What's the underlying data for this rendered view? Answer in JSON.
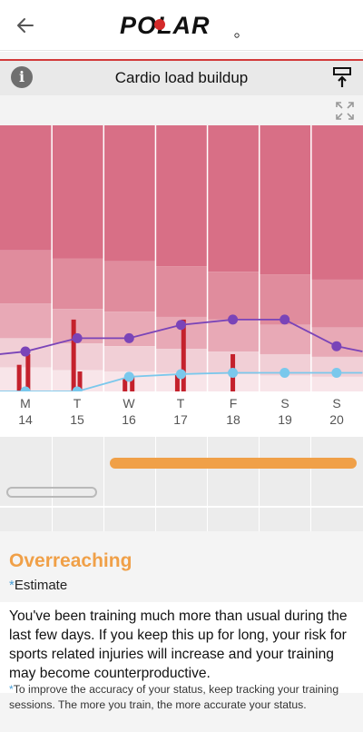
{
  "header": {
    "back_icon": "arrow-left-icon",
    "brand": "POLAR"
  },
  "card": {
    "title": "Cardio load buildup",
    "info_icon": "info-icon",
    "pin_icon": "pin-to-top-icon",
    "expand_icon": "expand-icon"
  },
  "colors": {
    "zone_very_high": "#d86f86",
    "zone_high": "#e08c9d",
    "zone_mid": "#e8a9b6",
    "zone_low": "#f1cfd6",
    "zone_lowest": "#f8e5e9",
    "strain_line": "#7a44b8",
    "tolerance_line": "#7ac8ec",
    "session_bar": "#c4212c",
    "status_accent": "#f0a048"
  },
  "days": [
    {
      "letter": "M",
      "date": "14"
    },
    {
      "letter": "T",
      "date": "15"
    },
    {
      "letter": "W",
      "date": "16"
    },
    {
      "letter": "T",
      "date": "17"
    },
    {
      "letter": "F",
      "date": "18"
    },
    {
      "letter": "S",
      "date": "19"
    },
    {
      "letter": "S",
      "date": "20"
    }
  ],
  "chart_data": {
    "type": "line",
    "title": "",
    "categories": [
      "M 14",
      "T 15",
      "W 16",
      "T 17",
      "F 18",
      "S 19",
      "S 20"
    ],
    "ylim": [
      0,
      100
    ],
    "series": [
      {
        "name": "",
        "color": "#7a44b8",
        "x": [
          -0.5,
          0,
          1,
          2,
          3,
          4,
          5,
          6,
          6.5
        ],
        "values": [
          14,
          15,
          20,
          20,
          25,
          27,
          27,
          17,
          15
        ]
      },
      {
        "name": "",
        "color": "#7ac8ec",
        "x": [
          -0.5,
          0,
          1,
          2,
          3,
          4,
          5,
          6,
          6.5
        ],
        "values": [
          0,
          0,
          0,
          5.5,
          6.5,
          7,
          7,
          7,
          7
        ]
      }
    ],
    "sessions": [
      {
        "x": -0.12,
        "value": 10
      },
      {
        "x": 0.05,
        "value": 14
      },
      {
        "x": 0.93,
        "value": 27
      },
      {
        "x": 1.05,
        "value": 7.5
      },
      {
        "x": 1.92,
        "value": 5
      },
      {
        "x": 2.06,
        "value": 5.5
      },
      {
        "x": 2.93,
        "value": 6.5
      },
      {
        "x": 3.05,
        "value": 27
      },
      {
        "x": 4.0,
        "value": 14
      }
    ],
    "zones": [
      {
        "color": "#d86f86",
        "bottoms": [
          53,
          50,
          49,
          47,
          45,
          44,
          42
        ]
      },
      {
        "color": "#e08c9d",
        "bottoms": [
          33,
          31,
          30,
          28,
          27,
          25,
          24
        ]
      },
      {
        "color": "#e8a9b6",
        "bottoms": [
          20,
          18,
          17,
          16,
          15,
          14,
          13
        ]
      },
      {
        "color": "#f1cfd6",
        "bottoms": [
          9,
          8,
          7.5,
          7,
          6.5,
          6,
          5.5
        ]
      },
      {
        "color": "#f8e5e9",
        "bottoms": [
          0,
          0,
          0,
          0,
          0,
          0,
          0
        ]
      }
    ]
  },
  "timeline": {
    "current_state": "Overreaching",
    "previous_state": ""
  },
  "status": {
    "title": "Overreaching",
    "estimate_marker": "*",
    "estimate_label": "Estimate",
    "description": "You've been training much more than usual during the last few days. If you keep this up for long, your risk for sports related injuries will increase and your training may become counterproductive.",
    "note_marker": "*",
    "note": "To improve the accuracy of your status, keep tracking your training sessions. The more you train, the more accurate your status."
  }
}
